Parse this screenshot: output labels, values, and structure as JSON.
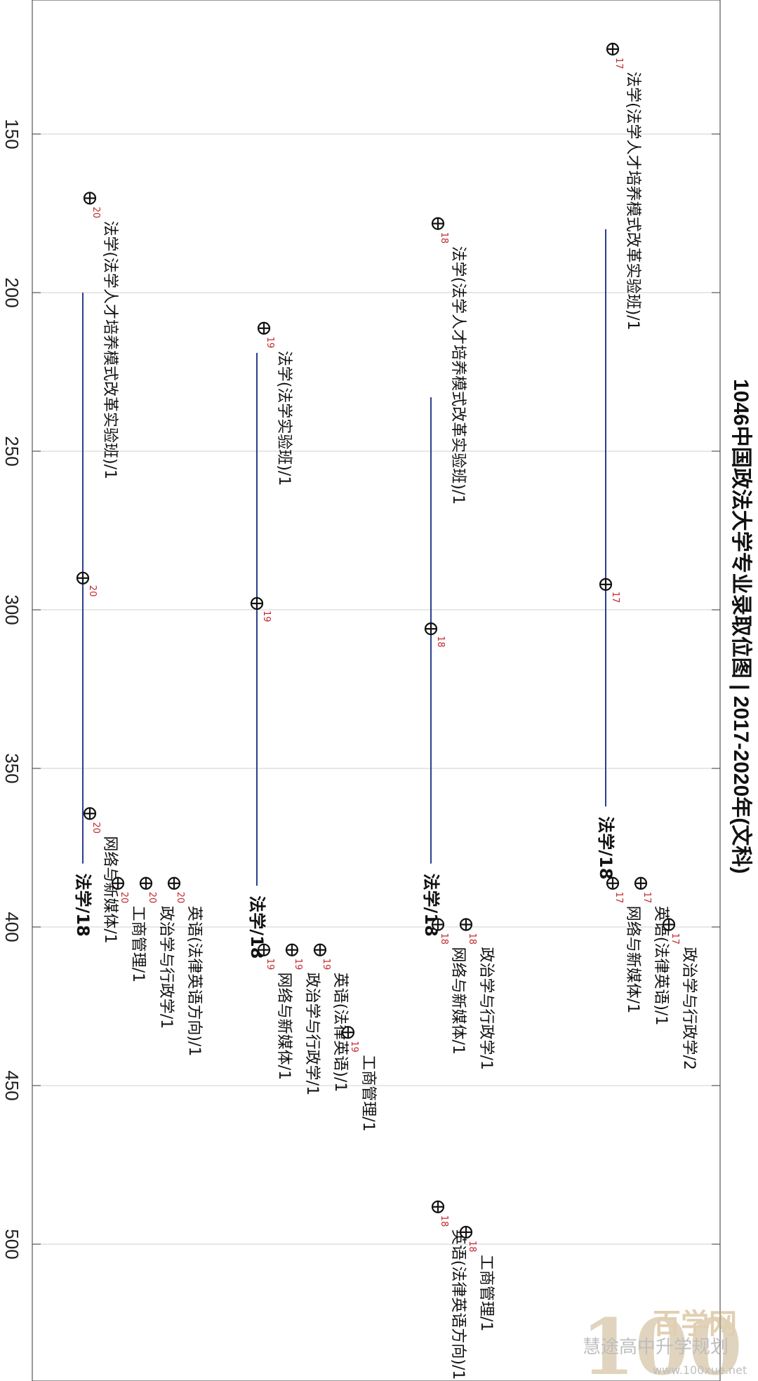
{
  "chart_data": {
    "type": "scatter",
    "title": "1046中国政法大学专业录取位图 | 2017-2020年(文科)",
    "axis_ticks": [
      150,
      200,
      250,
      300,
      350,
      400,
      450,
      500
    ],
    "axis_range": [
      108,
      547
    ],
    "grid": true,
    "columns": [
      {
        "year": "17",
        "range": {
          "label": "法学/18",
          "low": 180,
          "mid": 292,
          "high": 362
        },
        "majors": [
          {
            "name": "法学(法学人才培养模式改革实验班)/1",
            "value": 125
          },
          {
            "name": "网络与新媒体/1",
            "value": 388
          },
          {
            "name": "英语(法律英语)/1",
            "value": 388
          },
          {
            "name": "政治学与行政学/2",
            "value": 401
          }
        ]
      },
      {
        "year": "18",
        "range": {
          "label": "法学/18",
          "low": 233,
          "mid": 306,
          "high": 380
        },
        "majors": [
          {
            "name": "法学(法学人才培养模式改革实验班)/1",
            "value": 180
          },
          {
            "name": "网络与新媒体/1",
            "value": 401
          },
          {
            "name": "政治学与行政学/1",
            "value": 401
          },
          {
            "name": "英语(法律英语方向)/1",
            "value": 490
          },
          {
            "name": "工商管理/1",
            "value": 498
          }
        ]
      },
      {
        "year": "19",
        "range": {
          "label": "法学/18",
          "low": 219,
          "mid": 298,
          "high": 387
        },
        "majors": [
          {
            "name": "法学(法学实验班)/1",
            "value": 213
          },
          {
            "name": "网络与新媒体/1",
            "value": 409
          },
          {
            "name": "政治学与行政学/1",
            "value": 409
          },
          {
            "name": "英语(法律英语)/1",
            "value": 409
          },
          {
            "name": "工商管理/1",
            "value": 435
          }
        ]
      },
      {
        "year": "20",
        "range": {
          "label": "法学/18",
          "low": 200,
          "mid": 290,
          "high": 380
        },
        "majors": [
          {
            "name": "法学(法学人才培养模式改革实验班)/1",
            "value": 172
          },
          {
            "name": "网络与新媒体/1",
            "value": 366
          },
          {
            "name": "工商管理/1",
            "value": 388
          },
          {
            "name": "政治学与行政学/1",
            "value": 388
          },
          {
            "name": "英语(法律英语方向)/1",
            "value": 388
          }
        ]
      }
    ]
  },
  "watermark": {
    "logo": "100",
    "brand": "百学网",
    "site": "www.100xue.net",
    "account": "慧途高中升学规划"
  },
  "colors": {
    "range_line": "#2b3f8c",
    "year_sup": "#c0282d",
    "grid": "#cfcfcf",
    "frame": "#555555",
    "text": "#111111"
  }
}
